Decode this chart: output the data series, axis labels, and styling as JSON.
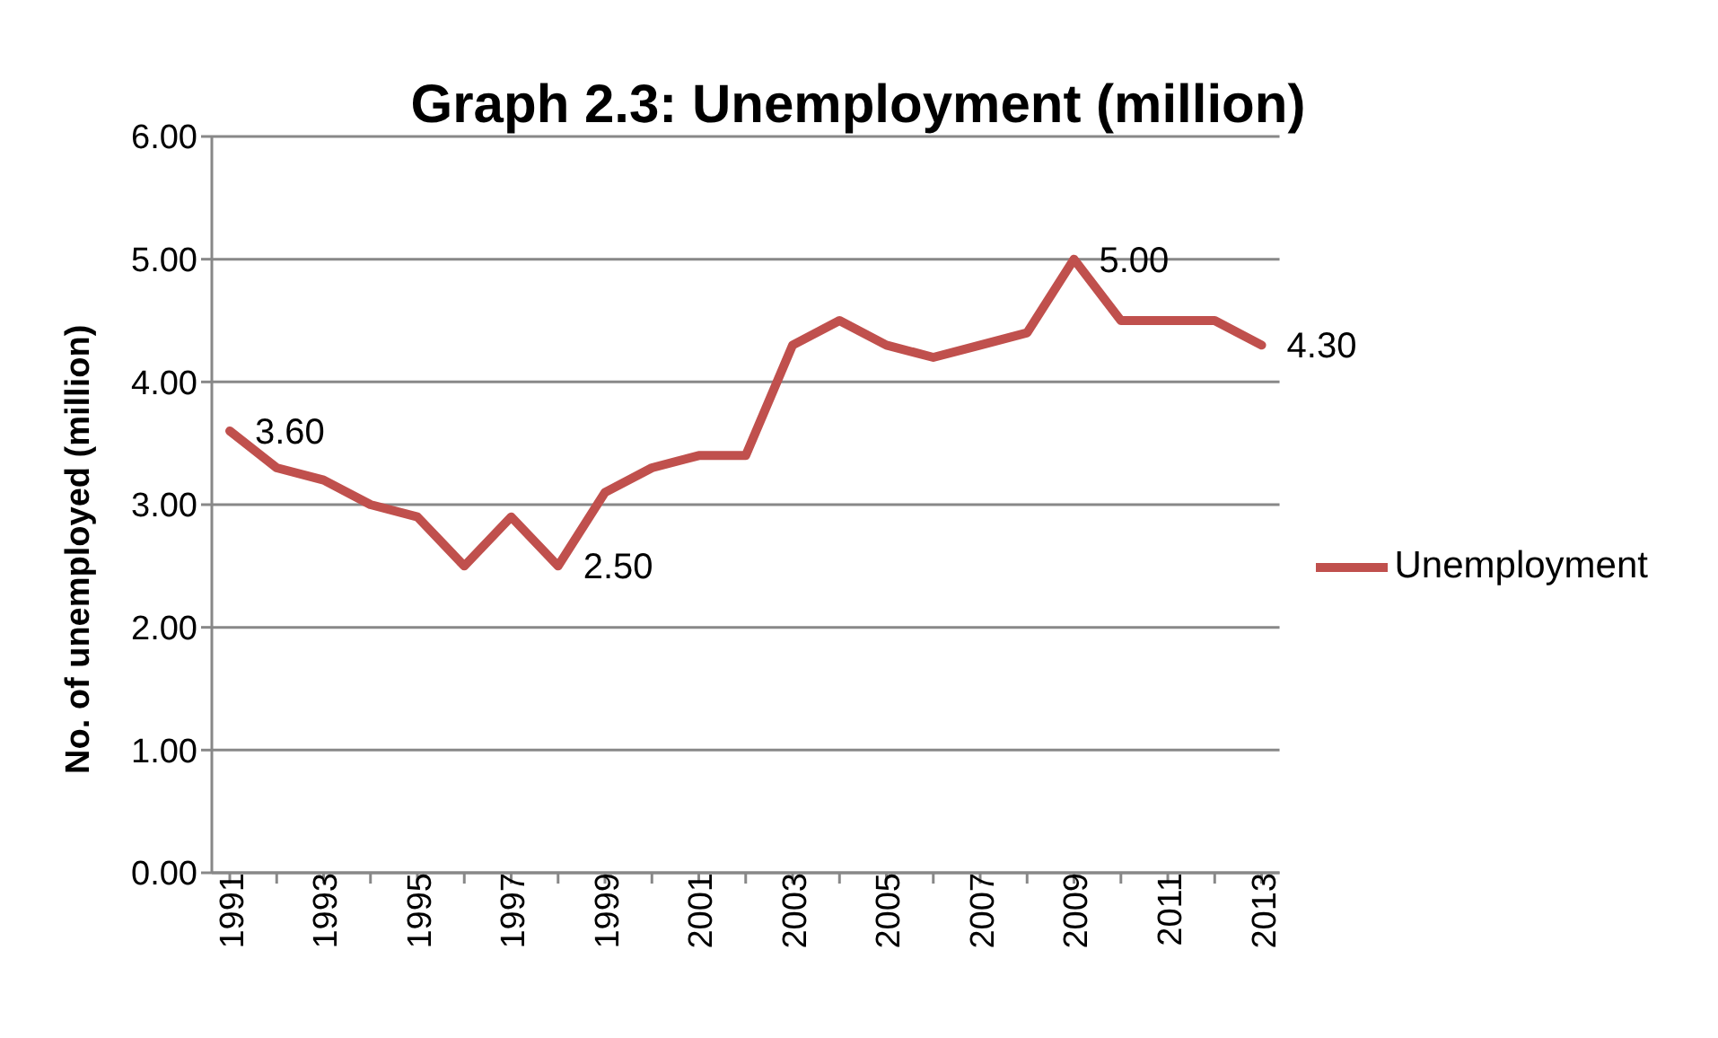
{
  "chart_data": {
    "type": "line",
    "title": "Graph 2.3: Unemployment (million)",
    "ylabel": "No. of unemployed (million)",
    "categories": [
      "1991",
      null,
      "1993",
      null,
      "1995",
      null,
      "1997",
      null,
      "1999",
      null,
      "2001",
      null,
      "2003",
      null,
      "2005",
      null,
      "2007",
      null,
      "2009",
      null,
      "2011",
      null,
      "2013"
    ],
    "series": [
      {
        "name": "Unemployment",
        "color": "#c0504d",
        "values": [
          3.6,
          3.3,
          3.2,
          3.0,
          2.9,
          2.5,
          2.9,
          2.5,
          3.1,
          3.3,
          3.4,
          3.4,
          4.3,
          4.5,
          4.3,
          4.2,
          4.3,
          4.4,
          5.0,
          4.5,
          4.5,
          4.5,
          4.3
        ],
        "value_labels": [
          "3.60",
          null,
          null,
          null,
          null,
          null,
          null,
          "2.50",
          null,
          null,
          null,
          null,
          null,
          null,
          null,
          null,
          null,
          null,
          "5.00",
          null,
          null,
          null,
          "4.30"
        ]
      }
    ],
    "ylim": [
      0,
      6
    ],
    "yticks": [
      {
        "value": 0,
        "label": "0.00"
      },
      {
        "value": 1,
        "label": "1.00"
      },
      {
        "value": 2,
        "label": "2.00"
      },
      {
        "value": 3,
        "label": "3.00"
      },
      {
        "value": 4,
        "label": "4.00"
      },
      {
        "value": 5,
        "label": "5.00"
      },
      {
        "value": 6,
        "label": "6.00"
      }
    ],
    "grid": "y",
    "legend": "right",
    "marker": "none",
    "line_style": "solid"
  }
}
